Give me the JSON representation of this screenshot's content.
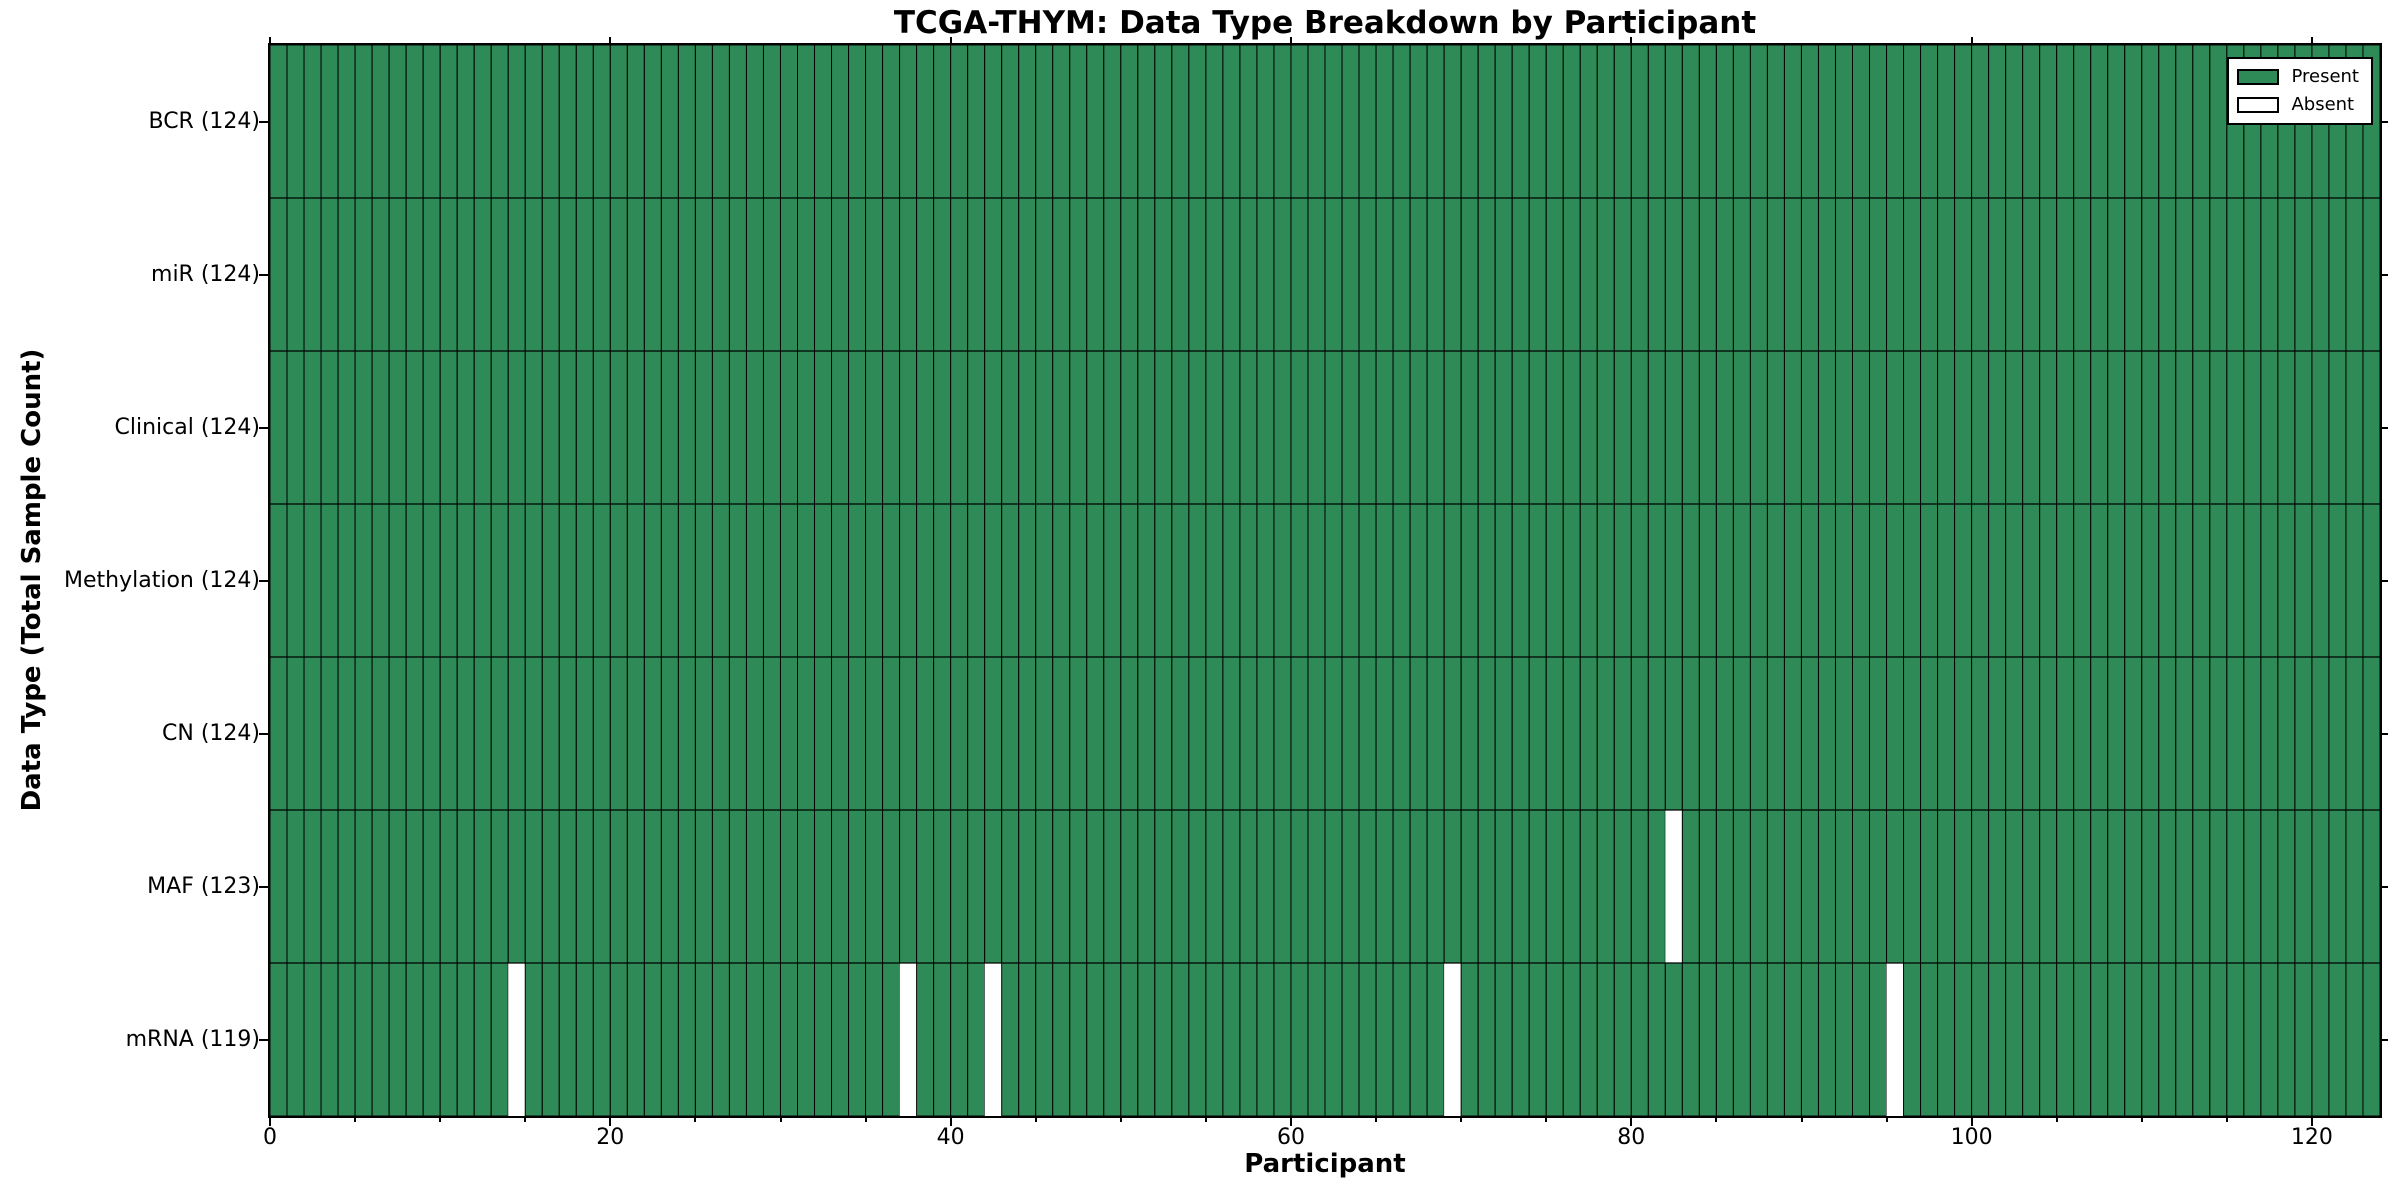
{
  "chart_data": {
    "type": "heatmap",
    "title": "TCGA-THYM: Data Type Breakdown by Participant",
    "xlabel": "Participant",
    "ylabel": "Data Type (Total Sample Count)",
    "n_participants": 124,
    "xlim": [
      0,
      124
    ],
    "x_ticks": [
      0,
      20,
      40,
      60,
      80,
      100,
      120
    ],
    "x_minor_tick_step": 5,
    "grid": "cell-edges",
    "legend_position": "upper right",
    "present_color": "#2e8b57",
    "absent_color": "#ffffff",
    "edge_color": "#000000",
    "legend": [
      {
        "label": "Present",
        "color": "#2e8b57"
      },
      {
        "label": "Absent",
        "color": "#ffffff"
      }
    ],
    "rows": [
      {
        "label": "BCR (124)",
        "data_type": "BCR",
        "total_samples": 124,
        "absent_participants": []
      },
      {
        "label": "miR (124)",
        "data_type": "miR",
        "total_samples": 124,
        "absent_participants": []
      },
      {
        "label": "Clinical (124)",
        "data_type": "Clinical",
        "total_samples": 124,
        "absent_participants": []
      },
      {
        "label": "Methylation (124)",
        "data_type": "Methylation",
        "total_samples": 124,
        "absent_participants": []
      },
      {
        "label": "CN (124)",
        "data_type": "CN",
        "total_samples": 124,
        "absent_participants": []
      },
      {
        "label": "MAF (123)",
        "data_type": "MAF",
        "total_samples": 123,
        "absent_participants": [
          82
        ]
      },
      {
        "label": "mRNA (119)",
        "data_type": "mRNA",
        "total_samples": 119,
        "absent_participants": [
          14,
          37,
          42,
          69,
          95
        ]
      }
    ]
  }
}
